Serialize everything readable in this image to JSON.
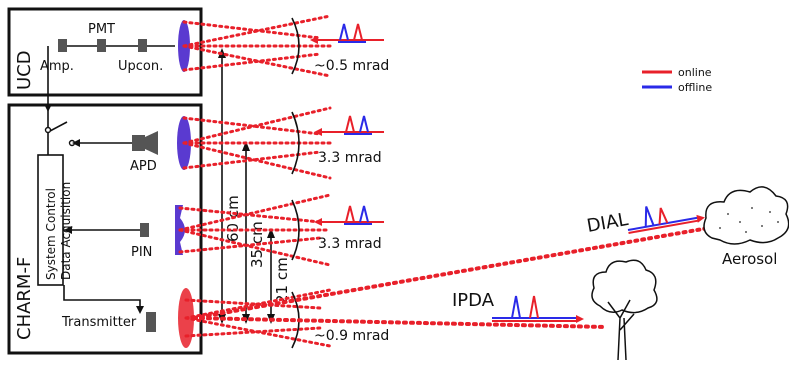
{
  "labels": {
    "ucd": "UCD",
    "pmt": "PMT",
    "amp": "Amp.",
    "upcon": "Upcon.",
    "charm_f": "CHARM-F",
    "apd": "APD",
    "pin": "PIN",
    "transmitter": "Transmitter",
    "system_control": "System Control",
    "data_acquisition": "Data Acquisition",
    "dist_60": "60 cm",
    "dist_35": "35 cm",
    "dist_21": "21 cm",
    "fov_1": "~0.5 mrad",
    "fov_2": "3.3 mrad",
    "fov_3": "3.3 mrad",
    "fov_4": "~0.9 mrad",
    "dial": "DIAL",
    "ipda": "IPDA",
    "aerosol": "Aerosol"
  },
  "legend": {
    "online": "online",
    "offline": "offline"
  },
  "colors": {
    "online": "#e8202a",
    "offline": "#2a2ae8",
    "lens": "#5a3ad0",
    "beam": "#e8202a",
    "outline": "#111111"
  }
}
